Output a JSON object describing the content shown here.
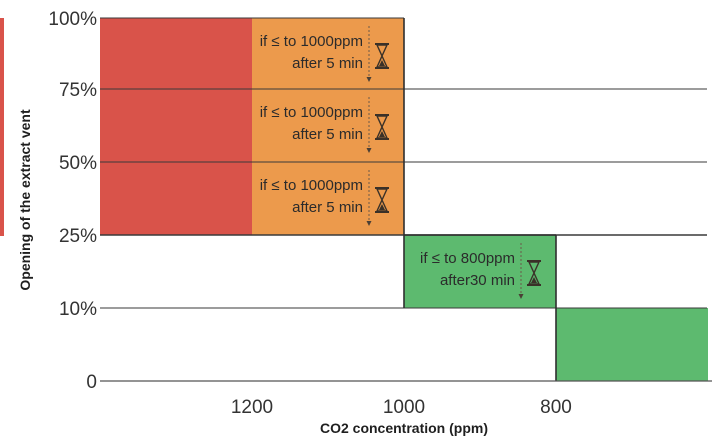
{
  "chart_data": {
    "type": "bar",
    "title": "",
    "xlabel": "CO2 concentration (ppm)",
    "ylabel": "Opening of the extract vent",
    "x_axis_reversed": true,
    "x_ticks": [
      "1200",
      "1000",
      "800"
    ],
    "y_ticks": [
      "0",
      "10%",
      "25%",
      "50%",
      "75%",
      "100%"
    ],
    "y_levels": [
      0,
      10,
      25,
      50,
      75,
      100
    ],
    "grid": true,
    "colors": {
      "red": "#d9534a",
      "orange": "#ec9a4c",
      "green": "#5dba6f",
      "accent_left": "#d9534a"
    },
    "regions": [
      {
        "from_ppm": 1400,
        "to_ppm": 1200,
        "y_from": 25,
        "y_to": 100,
        "color": "red"
      },
      {
        "from_ppm": 1200,
        "to_ppm": 1000,
        "y_from": 25,
        "y_to": 100,
        "color": "orange"
      },
      {
        "from_ppm": 1000,
        "to_ppm": 800,
        "y_from": 10,
        "y_to": 25,
        "color": "green"
      },
      {
        "from_ppm": 800,
        "to_ppm": 600,
        "y_from": 0,
        "y_to": 10,
        "color": "green"
      }
    ],
    "annotations": [
      {
        "line1": "if ≤ to 1000ppm",
        "line2": "after 5 min",
        "band": [
          75,
          100
        ],
        "icon": "hourglass-icon"
      },
      {
        "line1": "if ≤ to 1000ppm",
        "line2": "after 5 min",
        "band": [
          50,
          75
        ],
        "icon": "hourglass-icon"
      },
      {
        "line1": "if ≤ to 1000ppm",
        "line2": "after 5 min",
        "band": [
          25,
          50
        ],
        "icon": "hourglass-icon"
      },
      {
        "line1": "if ≤ to 800ppm",
        "line2": "after30 min",
        "band": [
          10,
          25
        ],
        "icon": "hourglass-icon"
      }
    ]
  }
}
